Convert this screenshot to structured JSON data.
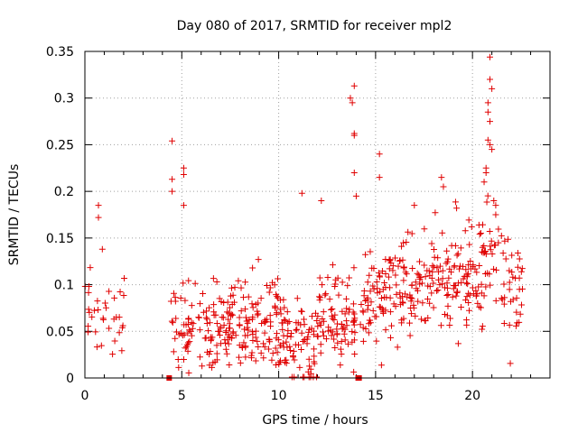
{
  "chart_data": {
    "type": "scatter",
    "title": "Day 080 of 2017, SRMTID for receiver mpl2",
    "xlabel": "GPS time / hours",
    "ylabel": "SRMTID / TECUs",
    "xlim": [
      0,
      24
    ],
    "ylim": [
      0,
      0.35
    ],
    "xticks": [
      0,
      5,
      10,
      15,
      20
    ],
    "xtick_labels": [
      "0",
      "5",
      "10",
      "15",
      "20"
    ],
    "yticks": [
      0,
      0.05,
      0.1,
      0.15,
      0.2,
      0.25,
      0.3,
      0.35
    ],
    "ytick_labels": [
      "0",
      "0.05",
      "0.1",
      "0.15",
      "0.2",
      "0.25",
      "0.3",
      "0.35"
    ],
    "grid": true,
    "marker": "plus",
    "series_color": "#e00000",
    "square_markers": [
      {
        "x": 4.35,
        "y": 0.0
      },
      {
        "x": 14.1,
        "y": 0.0
      },
      {
        "x": 14.15,
        "y": 0.0
      }
    ],
    "density_profile": [
      {
        "x_start": 0.0,
        "x_end": 2.1,
        "mean": 0.06,
        "spread": 0.022,
        "density": 16
      },
      {
        "x_start": 4.4,
        "x_end": 6.0,
        "mean": 0.055,
        "spread": 0.025,
        "density": 30
      },
      {
        "x_start": 6.0,
        "x_end": 8.0,
        "mean": 0.05,
        "spread": 0.022,
        "density": 42
      },
      {
        "x_start": 8.0,
        "x_end": 10.0,
        "mean": 0.06,
        "spread": 0.025,
        "density": 42
      },
      {
        "x_start": 10.0,
        "x_end": 12.0,
        "mean": 0.04,
        "spread": 0.025,
        "density": 42
      },
      {
        "x_start": 12.0,
        "x_end": 14.0,
        "mean": 0.065,
        "spread": 0.025,
        "density": 42
      },
      {
        "x_start": 14.2,
        "x_end": 16.0,
        "mean": 0.09,
        "spread": 0.025,
        "density": 40
      },
      {
        "x_start": 16.0,
        "x_end": 18.0,
        "mean": 0.095,
        "spread": 0.025,
        "density": 40
      },
      {
        "x_start": 18.0,
        "x_end": 20.3,
        "mean": 0.1,
        "spread": 0.025,
        "density": 40
      },
      {
        "x_start": 20.3,
        "x_end": 21.5,
        "mean": 0.12,
        "spread": 0.035,
        "density": 36
      },
      {
        "x_start": 21.5,
        "x_end": 22.6,
        "mean": 0.095,
        "spread": 0.025,
        "density": 32
      }
    ],
    "notable_points": [
      {
        "x": 0.7,
        "y": 0.185
      },
      {
        "x": 0.7,
        "y": 0.172
      },
      {
        "x": 0.9,
        "y": 0.138
      },
      {
        "x": 4.5,
        "y": 0.254
      },
      {
        "x": 4.5,
        "y": 0.213
      },
      {
        "x": 4.5,
        "y": 0.2
      },
      {
        "x": 5.1,
        "y": 0.225
      },
      {
        "x": 5.1,
        "y": 0.218
      },
      {
        "x": 5.1,
        "y": 0.185
      },
      {
        "x": 11.2,
        "y": 0.198
      },
      {
        "x": 12.2,
        "y": 0.19
      },
      {
        "x": 13.7,
        "y": 0.3
      },
      {
        "x": 13.8,
        "y": 0.295
      },
      {
        "x": 13.9,
        "y": 0.313
      },
      {
        "x": 13.9,
        "y": 0.262
      },
      {
        "x": 13.9,
        "y": 0.26
      },
      {
        "x": 13.9,
        "y": 0.22
      },
      {
        "x": 14.0,
        "y": 0.195
      },
      {
        "x": 15.2,
        "y": 0.24
      },
      {
        "x": 15.2,
        "y": 0.215
      },
      {
        "x": 17.0,
        "y": 0.185
      },
      {
        "x": 18.4,
        "y": 0.215
      },
      {
        "x": 18.5,
        "y": 0.205
      },
      {
        "x": 20.9,
        "y": 0.344
      },
      {
        "x": 20.9,
        "y": 0.32
      },
      {
        "x": 21.0,
        "y": 0.31
      },
      {
        "x": 20.8,
        "y": 0.295
      },
      {
        "x": 20.8,
        "y": 0.285
      },
      {
        "x": 20.9,
        "y": 0.275
      },
      {
        "x": 20.8,
        "y": 0.255
      },
      {
        "x": 20.9,
        "y": 0.25
      },
      {
        "x": 21.0,
        "y": 0.245
      },
      {
        "x": 20.7,
        "y": 0.225
      },
      {
        "x": 20.7,
        "y": 0.22
      },
      {
        "x": 20.6,
        "y": 0.21
      },
      {
        "x": 21.1,
        "y": 0.19
      },
      {
        "x": 21.2,
        "y": 0.185
      }
    ]
  }
}
